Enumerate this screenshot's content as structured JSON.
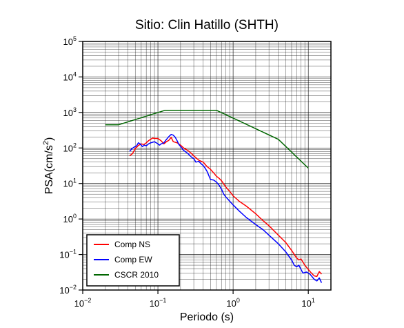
{
  "chart_data": {
    "type": "line",
    "title": "Sitio: Clin Hatillo (SHTH)",
    "xlabel": "Periodo (s)",
    "ylabel_base": "PSA(cm/s",
    "ylabel_exp": "2",
    "ylabel_close": ")",
    "xscale": "log",
    "yscale": "log",
    "xlim": [
      0.01,
      20
    ],
    "ylim": [
      0.01,
      100000
    ],
    "grid": true,
    "legend_position": "bottom-left",
    "x_ticks": [
      {
        "value": 0.01,
        "base": "10",
        "exp": "−2"
      },
      {
        "value": 0.1,
        "base": "10",
        "exp": "−1"
      },
      {
        "value": 1,
        "base": "10",
        "exp": "0"
      },
      {
        "value": 10,
        "base": "10",
        "exp": "1"
      }
    ],
    "y_ticks": [
      {
        "value": 0.01,
        "base": "10",
        "exp": "−2"
      },
      {
        "value": 0.1,
        "base": "10",
        "exp": "−1"
      },
      {
        "value": 1,
        "base": "10",
        "exp": "0"
      },
      {
        "value": 10,
        "base": "10",
        "exp": "1"
      },
      {
        "value": 100,
        "base": "10",
        "exp": "2"
      },
      {
        "value": 1000,
        "base": "10",
        "exp": "3"
      },
      {
        "value": 10000,
        "base": "10",
        "exp": "4"
      },
      {
        "value": 100000,
        "base": "10",
        "exp": "5"
      }
    ],
    "series": [
      {
        "name": "Comp NS",
        "color": "#ff0000",
        "points": [
          [
            0.042,
            60
          ],
          [
            0.046,
            70
          ],
          [
            0.05,
            95
          ],
          [
            0.055,
            118
          ],
          [
            0.06,
            130
          ],
          [
            0.065,
            125
          ],
          [
            0.07,
            140
          ],
          [
            0.075,
            160
          ],
          [
            0.08,
            175
          ],
          [
            0.085,
            190
          ],
          [
            0.09,
            185
          ],
          [
            0.1,
            185
          ],
          [
            0.11,
            160
          ],
          [
            0.12,
            130
          ],
          [
            0.13,
            150
          ],
          [
            0.14,
            165
          ],
          [
            0.15,
            200
          ],
          [
            0.16,
            150
          ],
          [
            0.18,
            140
          ],
          [
            0.2,
            120
          ],
          [
            0.22,
            100
          ],
          [
            0.25,
            85
          ],
          [
            0.28,
            70
          ],
          [
            0.3,
            60
          ],
          [
            0.35,
            45
          ],
          [
            0.4,
            40
          ],
          [
            0.45,
            30
          ],
          [
            0.5,
            25
          ],
          [
            0.55,
            20
          ],
          [
            0.6,
            16
          ],
          [
            0.65,
            14
          ],
          [
            0.7,
            12
          ],
          [
            0.8,
            8
          ],
          [
            0.9,
            6
          ],
          [
            1.0,
            4.5
          ],
          [
            1.2,
            3.2
          ],
          [
            1.5,
            2.3
          ],
          [
            2.0,
            1.4
          ],
          [
            2.5,
            0.9
          ],
          [
            3.0,
            0.65
          ],
          [
            4.0,
            0.35
          ],
          [
            5.0,
            0.22
          ],
          [
            6.0,
            0.13
          ],
          [
            7.0,
            0.08
          ],
          [
            7.5,
            0.07
          ],
          [
            8.0,
            0.075
          ],
          [
            9.0,
            0.05
          ],
          [
            10.0,
            0.038
          ],
          [
            11.0,
            0.03
          ],
          [
            12.0,
            0.025
          ],
          [
            13.0,
            0.024
          ],
          [
            14.0,
            0.033
          ],
          [
            15.0,
            0.028
          ]
        ]
      },
      {
        "name": "Comp EW",
        "color": "#0000ff",
        "points": [
          [
            0.042,
            80
          ],
          [
            0.045,
            95
          ],
          [
            0.048,
            105
          ],
          [
            0.052,
            115
          ],
          [
            0.055,
            140
          ],
          [
            0.058,
            130
          ],
          [
            0.062,
            110
          ],
          [
            0.066,
            120
          ],
          [
            0.07,
            115
          ],
          [
            0.075,
            130
          ],
          [
            0.08,
            140
          ],
          [
            0.085,
            145
          ],
          [
            0.09,
            150
          ],
          [
            0.095,
            140
          ],
          [
            0.1,
            130
          ],
          [
            0.105,
            120
          ],
          [
            0.11,
            130
          ],
          [
            0.12,
            140
          ],
          [
            0.13,
            175
          ],
          [
            0.14,
            210
          ],
          [
            0.15,
            240
          ],
          [
            0.16,
            230
          ],
          [
            0.17,
            200
          ],
          [
            0.18,
            160
          ],
          [
            0.19,
            125
          ],
          [
            0.2,
            110
          ],
          [
            0.22,
            85
          ],
          [
            0.25,
            70
          ],
          [
            0.28,
            55
          ],
          [
            0.3,
            50
          ],
          [
            0.32,
            40
          ],
          [
            0.35,
            42
          ],
          [
            0.38,
            35
          ],
          [
            0.4,
            32
          ],
          [
            0.42,
            28
          ],
          [
            0.45,
            22
          ],
          [
            0.5,
            13
          ],
          [
            0.55,
            12.5
          ],
          [
            0.6,
            11
          ],
          [
            0.65,
            9
          ],
          [
            0.7,
            7
          ],
          [
            0.75,
            5
          ],
          [
            0.8,
            4.2
          ],
          [
            0.9,
            3.2
          ],
          [
            1.0,
            2.5
          ],
          [
            1.2,
            1.7
          ],
          [
            1.5,
            1.1
          ],
          [
            2.0,
            0.7
          ],
          [
            2.5,
            0.5
          ],
          [
            3.0,
            0.35
          ],
          [
            4.0,
            0.2
          ],
          [
            5.0,
            0.12
          ],
          [
            6.0,
            0.07
          ],
          [
            6.5,
            0.05
          ],
          [
            7.0,
            0.045
          ],
          [
            7.5,
            0.05
          ],
          [
            8.0,
            0.038
          ],
          [
            8.5,
            0.03
          ],
          [
            9.5,
            0.032
          ],
          [
            10.5,
            0.028
          ],
          [
            11.0,
            0.025
          ],
          [
            12.0,
            0.02
          ],
          [
            13.0,
            0.018
          ],
          [
            14.0,
            0.022
          ],
          [
            15.0,
            0.016
          ]
        ]
      },
      {
        "name": "CSCR 2010",
        "color": "#006600",
        "points": [
          [
            0.02,
            450
          ],
          [
            0.03,
            450
          ],
          [
            0.125,
            1150
          ],
          [
            0.6,
            1150
          ],
          [
            4.0,
            175
          ],
          [
            10.0,
            27
          ]
        ]
      }
    ]
  }
}
